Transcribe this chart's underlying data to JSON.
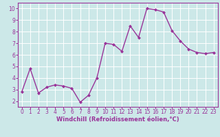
{
  "x": [
    0,
    1,
    2,
    3,
    4,
    5,
    6,
    7,
    8,
    9,
    10,
    11,
    12,
    13,
    14,
    15,
    16,
    17,
    18,
    19,
    20,
    21,
    22,
    23
  ],
  "y": [
    2.8,
    4.8,
    2.7,
    3.2,
    3.4,
    3.3,
    3.1,
    1.9,
    2.5,
    4.0,
    7.0,
    6.9,
    6.3,
    8.5,
    7.5,
    10.0,
    9.9,
    9.7,
    8.1,
    7.2,
    6.5,
    6.2,
    6.1,
    6.2
  ],
  "line_color": "#993399",
  "marker": "D",
  "marker_size": 2.0,
  "background_color": "#cce8e8",
  "grid_color": "#ffffff",
  "xlabel": "Windchill (Refroidissement éolien,°C)",
  "ylabel": "",
  "xlim": [
    -0.5,
    23.5
  ],
  "ylim": [
    1.5,
    10.5
  ],
  "yticks": [
    2,
    3,
    4,
    5,
    6,
    7,
    8,
    9,
    10
  ],
  "xticks": [
    0,
    1,
    2,
    3,
    4,
    5,
    6,
    7,
    8,
    9,
    10,
    11,
    12,
    13,
    14,
    15,
    16,
    17,
    18,
    19,
    20,
    21,
    22,
    23
  ],
  "tick_color": "#993399",
  "label_color": "#993399",
  "spine_color": "#993399",
  "xlabel_fontsize": 6.0,
  "tick_fontsize": 5.5,
  "linewidth": 1.0
}
